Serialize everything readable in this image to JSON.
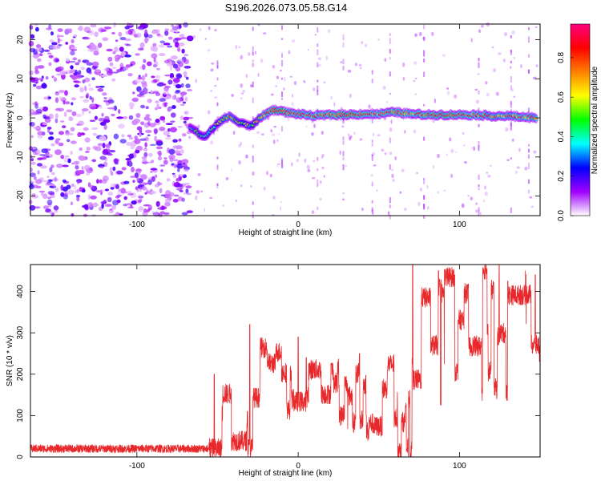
{
  "title": "S196.2026.073.05.58.G14",
  "chart_data": [
    {
      "type": "heatmap",
      "name": "spectrogram",
      "xlabel": "Height of straight line (km)",
      "ylabel": "Frequency (Hz)",
      "xlim": [
        -166,
        150
      ],
      "ylim": [
        -25,
        24
      ],
      "xticks": [
        -100,
        0,
        100
      ],
      "yticks": [
        -20,
        -10,
        0,
        10,
        20
      ],
      "colorbar": {
        "label": "Normalized spectral amplitude",
        "range": [
          0,
          0.97
        ],
        "ticks": [
          0.0,
          0.2,
          0.4,
          0.6,
          0.8
        ],
        "tick_labels": [
          "0.0",
          "0.2",
          "0.4",
          "0.6",
          "0.8"
        ],
        "colors": [
          "#ffffff",
          "#a000ff",
          "#0000ff",
          "#00ffff",
          "#00ff00",
          "#ffff00",
          "#ff8000",
          "#ff0000",
          "#ff0080"
        ]
      },
      "noise_region_x": [
        -166,
        -67
      ],
      "signal_track": {
        "x": [
          -67,
          -63,
          -60,
          -57,
          -54,
          -50,
          -45,
          -42,
          -38,
          -34,
          -30,
          -27,
          -24,
          -20,
          -16,
          -12,
          -8,
          -4,
          0,
          10,
          20,
          30,
          40,
          50,
          60,
          70,
          80,
          90,
          100,
          110,
          120,
          130,
          140,
          148
        ],
        "frequency": [
          -2.5,
          -3.5,
          -4.5,
          -5,
          -3,
          -1.5,
          0,
          0.5,
          -1,
          -1.5,
          -2,
          -1.5,
          0,
          1,
          2,
          2,
          1.5,
          1.2,
          1,
          0.5,
          0.8,
          0.8,
          1,
          1,
          1.5,
          1,
          0.8,
          0.8,
          0.8,
          0.8,
          0.5,
          0.5,
          0.2,
          0
        ],
        "amplitude": [
          0.3,
          0.35,
          0.4,
          0.4,
          0.45,
          0.5,
          0.6,
          0.65,
          0.55,
          0.5,
          0.45,
          0.5,
          0.6,
          0.7,
          0.85,
          0.9,
          0.85,
          0.8,
          0.8,
          0.75,
          0.8,
          0.85,
          0.8,
          0.75,
          0.8,
          0.75,
          0.8,
          0.85,
          0.8,
          0.75,
          0.7,
          0.7,
          0.75,
          0.7
        ]
      }
    },
    {
      "type": "line",
      "name": "snr",
      "xlabel": "Height of straight line (km)",
      "ylabel": "SNR (10 * v/v)",
      "xlim": [
        -166,
        150
      ],
      "ylim": [
        0,
        465
      ],
      "xticks": [
        -100,
        0,
        100
      ],
      "yticks": [
        0,
        100,
        200,
        300,
        400
      ],
      "color": "#e8282a",
      "segments": [
        {
          "x_start": -166,
          "x_end": -56,
          "mean": 20,
          "spread": 10
        },
        {
          "x_start": -56,
          "x_end": -30,
          "mean": 90,
          "spread": 60
        },
        {
          "x_start": -30,
          "x_end": 15,
          "mean": 170,
          "spread": 80
        },
        {
          "x_start": 15,
          "x_end": 57,
          "mean": 140,
          "spread": 70
        },
        {
          "x_start": 57,
          "x_end": 70,
          "mean": 70,
          "spread": 60
        },
        {
          "x_start": 70,
          "x_end": 150,
          "mean": 300,
          "spread": 130
        }
      ],
      "peaks": [
        {
          "x": -52,
          "y": 200
        },
        {
          "x": -30,
          "y": 320
        },
        {
          "x": 0,
          "y": 290
        },
        {
          "x": 5,
          "y": 240
        },
        {
          "x": 38,
          "y": 250
        },
        {
          "x": 71,
          "y": 465
        },
        {
          "x": 87,
          "y": 450
        },
        {
          "x": 97,
          "y": 440
        },
        {
          "x": 130,
          "y": 425
        },
        {
          "x": 147,
          "y": 440
        }
      ]
    }
  ]
}
